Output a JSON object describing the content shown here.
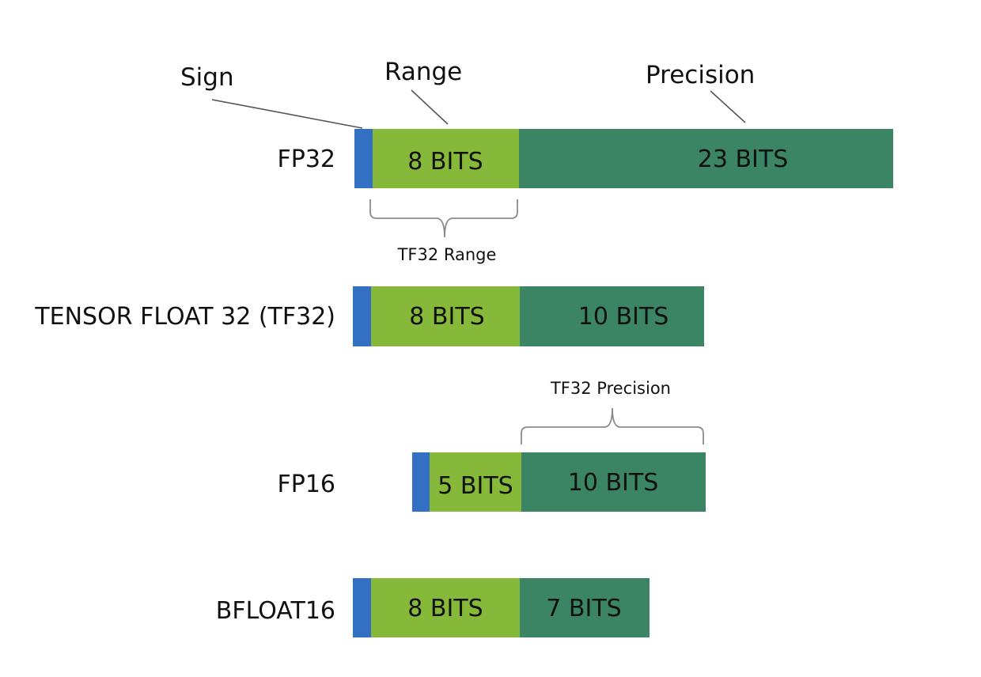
{
  "annotations": {
    "sign": "Sign",
    "range": "Range",
    "precision": "Precision",
    "tf32_range": "TF32 Range",
    "tf32_precision": "TF32 Precision"
  },
  "colors": {
    "sign": "#3370c4",
    "exponent": "#86b83a",
    "mantissa": "#3b8564"
  },
  "formats": [
    {
      "name": "FP32",
      "sign_bits": 1,
      "exponent_label": "8 BITS",
      "exponent_bits": 8,
      "mantissa_label": "23 BITS",
      "mantissa_bits": 23
    },
    {
      "name": "TENSOR FLOAT 32 (TF32)",
      "sign_bits": 1,
      "exponent_label": "8 BITS",
      "exponent_bits": 8,
      "mantissa_label": "10 BITS",
      "mantissa_bits": 10
    },
    {
      "name": "FP16",
      "sign_bits": 1,
      "exponent_label": "5 BITS",
      "exponent_bits": 5,
      "mantissa_label": "10 BITS",
      "mantissa_bits": 10
    },
    {
      "name": "BFLOAT16",
      "sign_bits": 1,
      "exponent_label": "8 BITS",
      "exponent_bits": 8,
      "mantissa_label": "7 BITS",
      "mantissa_bits": 7
    }
  ]
}
